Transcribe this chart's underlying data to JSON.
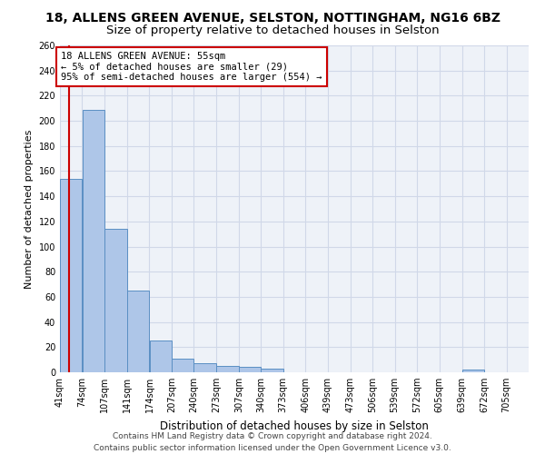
{
  "title1": "18, ALLENS GREEN AVENUE, SELSTON, NOTTINGHAM, NG16 6BZ",
  "title2": "Size of property relative to detached houses in Selston",
  "xlabel": "Distribution of detached houses by size in Selston",
  "ylabel": "Number of detached properties",
  "bar_values": [
    154,
    209,
    114,
    65,
    25,
    11,
    7,
    5,
    4,
    3,
    0,
    0,
    0,
    0,
    0,
    0,
    0,
    0,
    2,
    0,
    0
  ],
  "bar_edges": [
    41,
    74,
    107,
    141,
    174,
    207,
    240,
    273,
    307,
    340,
    373,
    406,
    439,
    473,
    506,
    539,
    572,
    605,
    639,
    672,
    705,
    738
  ],
  "xtick_labels": [
    "41sqm",
    "74sqm",
    "107sqm",
    "141sqm",
    "174sqm",
    "207sqm",
    "240sqm",
    "273sqm",
    "307sqm",
    "340sqm",
    "373sqm",
    "406sqm",
    "439sqm",
    "473sqm",
    "506sqm",
    "539sqm",
    "572sqm",
    "605sqm",
    "639sqm",
    "672sqm",
    "705sqm"
  ],
  "bar_color": "#aec6e8",
  "bar_edge_color": "#5a8fc3",
  "grid_color": "#d0d8e8",
  "background_color": "#eef2f8",
  "vline_x": 55,
  "vline_color": "#cc0000",
  "annotation_text": "18 ALLENS GREEN AVENUE: 55sqm\n← 5% of detached houses are smaller (29)\n95% of semi-detached houses are larger (554) →",
  "annotation_box_color": "#cc0000",
  "ylim": [
    0,
    260
  ],
  "yticks": [
    0,
    20,
    40,
    60,
    80,
    100,
    120,
    140,
    160,
    180,
    200,
    220,
    240,
    260
  ],
  "footer": "Contains HM Land Registry data © Crown copyright and database right 2024.\nContains public sector information licensed under the Open Government Licence v3.0.",
  "title1_fontsize": 10,
  "title2_fontsize": 9.5,
  "ylabel_fontsize": 8,
  "xlabel_fontsize": 8.5,
  "tick_fontsize": 7,
  "annotation_fontsize": 7.5,
  "footer_fontsize": 6.5
}
